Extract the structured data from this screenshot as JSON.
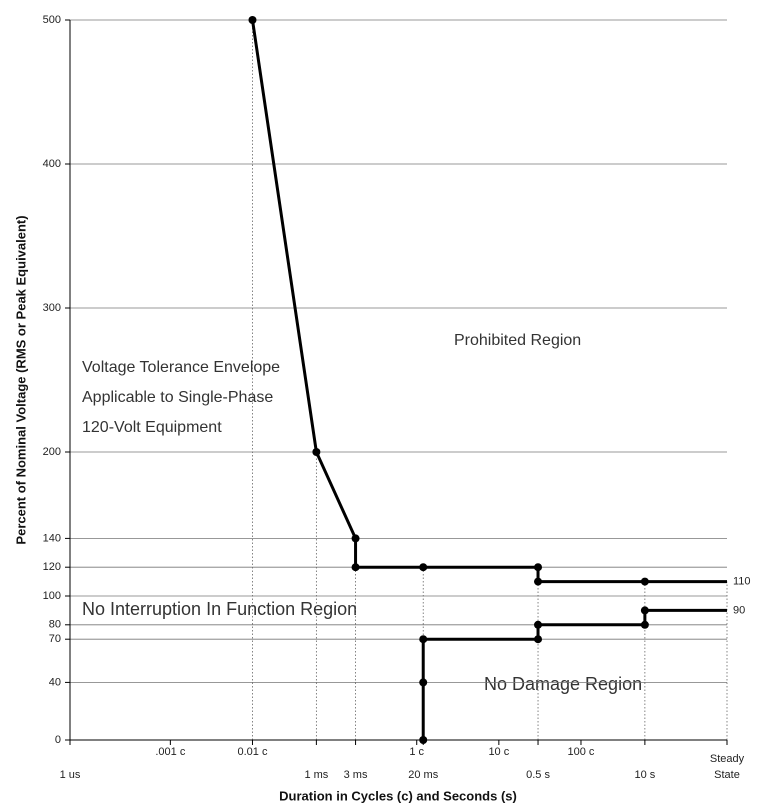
{
  "chart_data": {
    "type": "line",
    "x_label": "Duration in Cycles (c) and Seconds (s)",
    "y_label": "Percent of Nominal Voltage (RMS or Peak Equivalent)",
    "annotations": [
      "Prohibited Region",
      "Voltage Tolerance Envelope",
      "Applicable to Single-Phase",
      "120-Volt Equipment",
      "No Interruption In Function Region",
      "No Damage Region"
    ],
    "xlog": true,
    "xlim": [
      1e-06,
      100
    ],
    "ylim": [
      0,
      500
    ],
    "yticks": [
      0,
      40,
      70,
      80,
      100,
      120,
      140,
      200,
      300,
      400,
      500
    ],
    "xticks": [
      {
        "value": 1e-06,
        "label": "1 us"
      },
      {
        "value": 0.001,
        "label": "1 ms"
      },
      {
        "value": 0.003,
        "label": "3 ms"
      },
      {
        "value": 0.02,
        "label": "20 ms"
      },
      {
        "value": 0.5,
        "label": "0.5 s"
      },
      {
        "value": 10,
        "label": "10 s"
      },
      {
        "value": 100,
        "label": "Steady State"
      }
    ],
    "x2ticks": [
      {
        "value": 1.667e-05,
        "label": ".001 c"
      },
      {
        "value": 0.0001667,
        "label": "0.01 c"
      },
      {
        "value": 0.01667,
        "label": "1 c"
      },
      {
        "value": 0.1667,
        "label": "10 c"
      },
      {
        "value": 1.667,
        "label": "100 c"
      }
    ],
    "grid": true,
    "series": [
      {
        "color": "#000000",
        "x": [
          0.0001667,
          0.001,
          0.003,
          0.003,
          0.02,
          0.5,
          0.5,
          10,
          100
        ],
        "values": [
          500,
          200,
          140,
          120,
          120,
          120,
          110,
          110,
          110
        ]
      },
      {
        "color": "#000000",
        "x": [
          0.02,
          0.02,
          0.02,
          0.5,
          0.5,
          10,
          10,
          100
        ],
        "values": [
          0,
          40,
          70,
          70,
          80,
          80,
          90,
          90
        ]
      }
    ]
  }
}
